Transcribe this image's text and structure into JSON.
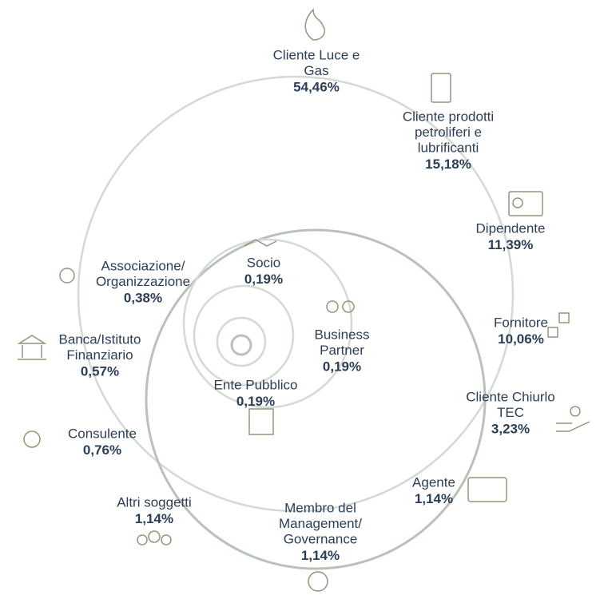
{
  "items": [
    {
      "label": [
        "Cliente Luce e",
        "Gas"
      ],
      "value": "54,46%"
    },
    {
      "label": [
        "Cliente prodotti",
        "petroliferi e",
        "lubrificanti"
      ],
      "value": "15,18%"
    },
    {
      "label": [
        "Dipendente"
      ],
      "value": "11,39%"
    },
    {
      "label": [
        "Fornitore"
      ],
      "value": "10,06%"
    },
    {
      "label": [
        "Cliente Chiurlo",
        "TEC"
      ],
      "value": "3,23%"
    },
    {
      "label": [
        "Agente"
      ],
      "value": "1,14%"
    },
    {
      "label": [
        "Membro del",
        "Management/",
        "Governance"
      ],
      "value": "1,14%"
    },
    {
      "label": [
        "Altri soggetti"
      ],
      "value": "1,14%"
    },
    {
      "label": [
        "Consulente"
      ],
      "value": "0,76%"
    },
    {
      "label": [
        "Banca/Istituto",
        "Finanziario"
      ],
      "value": "0,57%"
    },
    {
      "label": [
        "Associazione/",
        "Organizzazione"
      ],
      "value": "0,38%"
    },
    {
      "label": [
        "Socio"
      ],
      "value": "0,19%"
    },
    {
      "label": [
        "Business",
        "Partner"
      ],
      "value": "0,19%"
    },
    {
      "label": [
        "Ente Pubblico"
      ],
      "value": "0,19%"
    }
  ]
}
